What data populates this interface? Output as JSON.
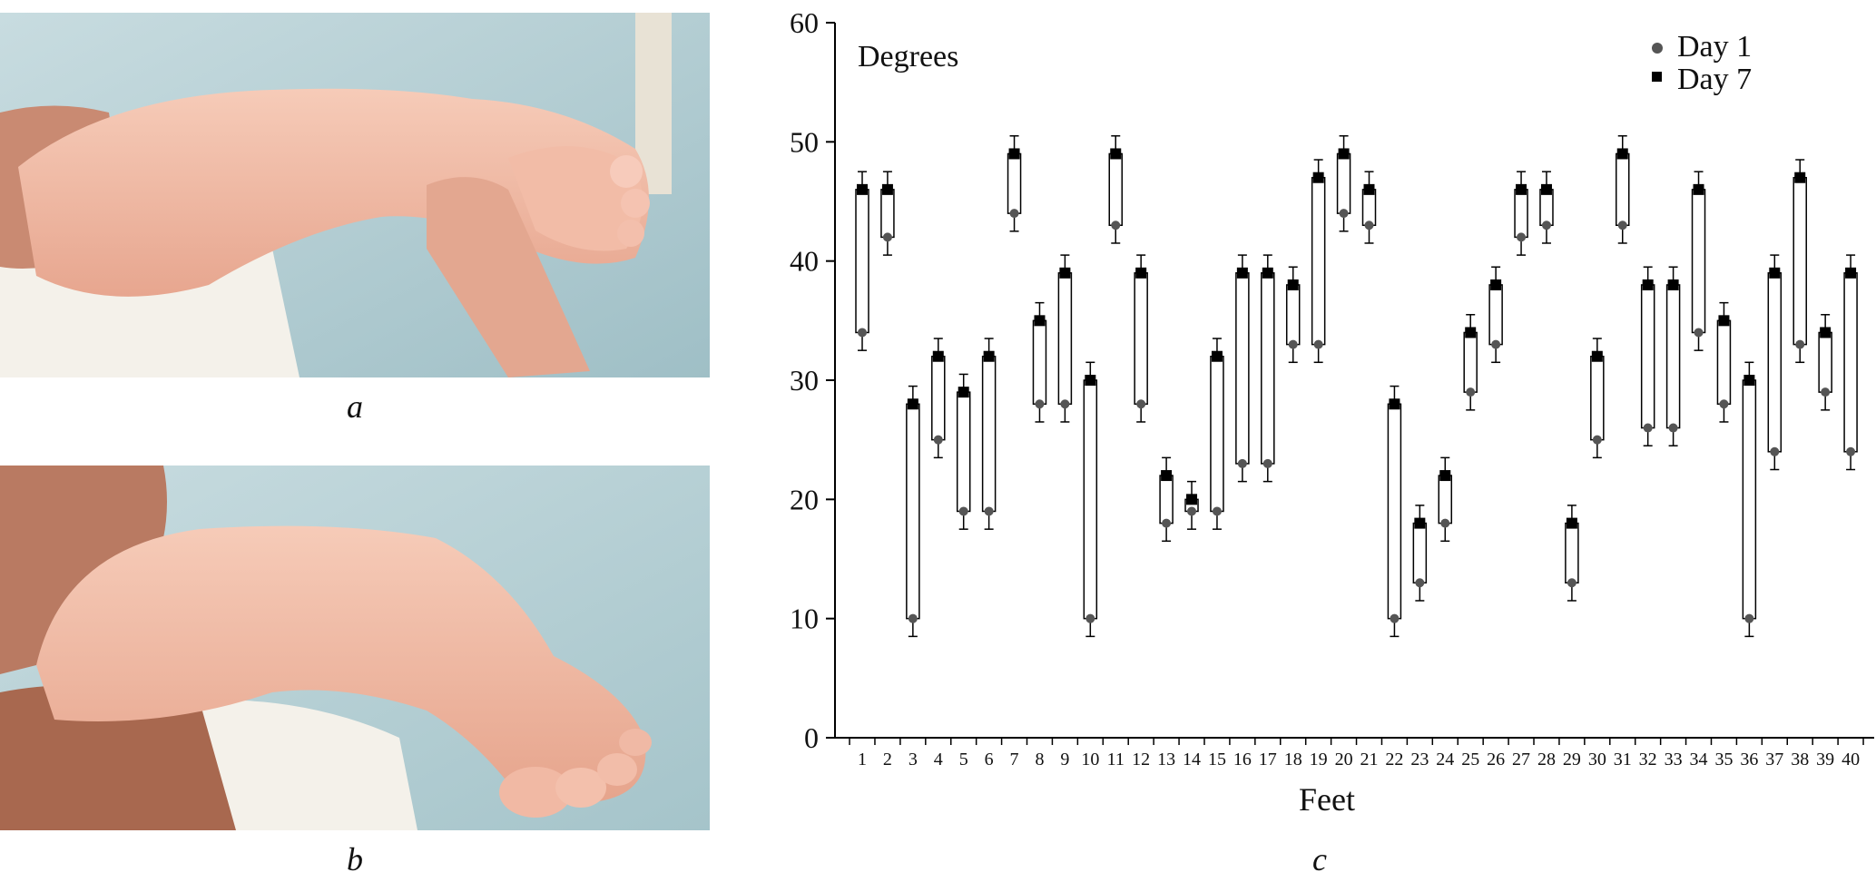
{
  "panels": {
    "a": "a",
    "b": "b",
    "c": "c"
  },
  "photos": [
    {
      "id": "a",
      "icon": "infant-foot-photo"
    },
    {
      "id": "b",
      "icon": "infant-foot-photo"
    }
  ],
  "colors": {
    "day1_marker": "#555555",
    "day7_marker": "#000000",
    "bar_outline": "#000000",
    "photo_background": "#b7d0d6",
    "skin": "#f0b8a4"
  },
  "chart_data": {
    "type": "bar",
    "title": "",
    "inner_label": "Degrees",
    "xlabel": "Feet",
    "ylabel": "",
    "ylim": [
      0,
      60
    ],
    "yticks": [
      0,
      10,
      20,
      30,
      40,
      50,
      60
    ],
    "grid": false,
    "legend_position": "top-right",
    "categories": [
      "1",
      "2",
      "3",
      "4",
      "5",
      "6",
      "7",
      "8",
      "9",
      "10",
      "11",
      "12",
      "13",
      "14",
      "15",
      "16",
      "17",
      "18",
      "19",
      "20",
      "21",
      "22",
      "23",
      "24",
      "25",
      "26",
      "27",
      "28",
      "29",
      "30",
      "31",
      "32",
      "33",
      "34",
      "35",
      "36",
      "37",
      "38",
      "39",
      "40"
    ],
    "series": [
      {
        "name": "Day 1",
        "marker": "circle",
        "values": [
          34,
          42,
          10,
          25,
          19,
          19,
          44,
          28,
          28,
          10,
          43,
          28,
          18,
          19,
          19,
          23,
          23,
          33,
          33,
          44,
          43,
          10,
          13,
          18,
          29,
          33,
          42,
          43,
          13,
          25,
          43,
          26,
          26,
          34,
          28,
          10,
          24,
          33,
          29,
          24
        ]
      },
      {
        "name": "Day 7",
        "marker": "square",
        "values": [
          46,
          46,
          28,
          32,
          29,
          32,
          49,
          35,
          39,
          30,
          49,
          39,
          22,
          20,
          32,
          39,
          39,
          38,
          47,
          49,
          46,
          28,
          18,
          22,
          34,
          38,
          46,
          46,
          18,
          32,
          49,
          38,
          38,
          46,
          35,
          30,
          39,
          47,
          34,
          39
        ]
      }
    ],
    "error": 1.5
  }
}
